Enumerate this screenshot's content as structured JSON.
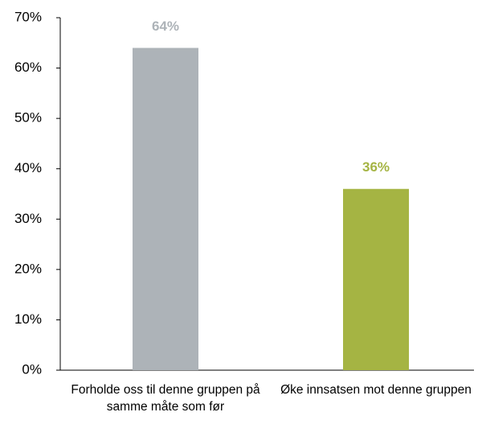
{
  "chart_data": {
    "type": "bar",
    "categories": [
      "Forholde oss til denne gruppen på samme måte som før",
      "Øke innsatsen mot denne gruppen"
    ],
    "values": [
      64,
      36
    ],
    "value_labels": [
      "64%",
      "36%"
    ],
    "colors": [
      "#adb3b8",
      "#a5b443"
    ],
    "ylim": [
      0,
      70
    ],
    "yticks": [
      {
        "value": 0,
        "label": "0%"
      },
      {
        "value": 10,
        "label": "10%"
      },
      {
        "value": 20,
        "label": "20%"
      },
      {
        "value": 30,
        "label": "30%"
      },
      {
        "value": 40,
        "label": "40%"
      },
      {
        "value": 50,
        "label": "50%"
      },
      {
        "value": 60,
        "label": "60%"
      },
      {
        "value": 70,
        "label": "70%"
      }
    ],
    "grid": false
  }
}
